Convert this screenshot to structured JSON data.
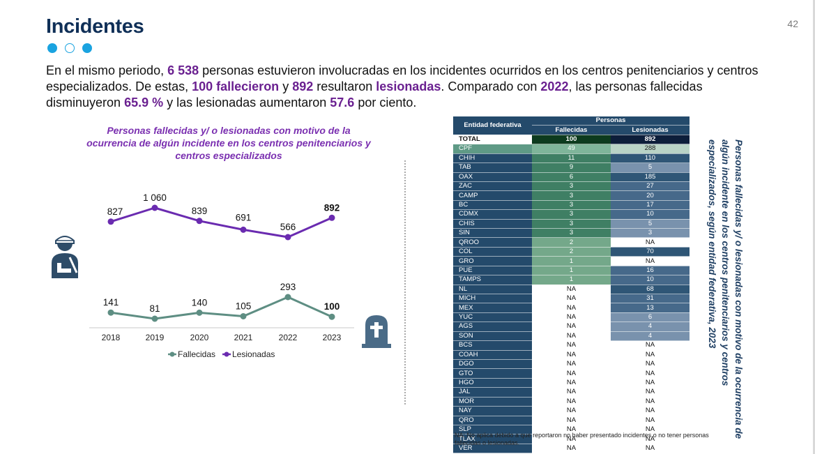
{
  "page": {
    "title": "Incidentes",
    "number": "42"
  },
  "intro": {
    "p1": "En el mismo periodo, ",
    "v_total": "6 538",
    "p2": " personas estuvieron involucradas en los incidentes ocurridos en los centros penitenciarios y centros especializados. De estas, ",
    "v_fallecieron": "100 fallecieron",
    "p3": " y ",
    "v_892": "892",
    "p4": " resultaron ",
    "v_lesionadas": "lesionadas",
    "p5": ". Comparado con ",
    "v_2022": "2022",
    "p6": ", las personas fallecidas disminuyeron ",
    "v_659": "65.9 %",
    "p7": " y las lesionadas aumentaron ",
    "v_576": "57.6",
    "p8": " por ciento."
  },
  "chart_data": {
    "type": "line",
    "title": "Personas fallecidas y/ o lesionadas con motivo de la ocurrencia de algún incidente en los centros penitenciarios y centros especializados",
    "categories": [
      "2018",
      "2019",
      "2020",
      "2021",
      "2022",
      "2023"
    ],
    "series": [
      {
        "name": "Fallecidas",
        "color": "#5e8e83",
        "values": [
          141,
          81,
          140,
          105,
          293,
          100
        ],
        "labels": [
          "141",
          "81",
          "140",
          "105",
          "293",
          "100"
        ]
      },
      {
        "name": "Lesionadas",
        "color": "#6a2bb0",
        "values": [
          827,
          1060,
          839,
          691,
          566,
          892
        ],
        "labels": [
          "827",
          "1 060",
          "839",
          "691",
          "566",
          "892"
        ]
      }
    ],
    "legend": "bottom"
  },
  "table": {
    "header_entity": "Entidad federativa",
    "header_group": "Personas",
    "header_col1": "Fallecidas",
    "header_col2": "Lesionadas",
    "rows": [
      {
        "e": "TOTAL",
        "f": "100",
        "l": "892"
      },
      {
        "e": "CPF",
        "f": "49",
        "l": "288"
      },
      {
        "e": "CHIH",
        "f": "11",
        "l": "110"
      },
      {
        "e": "TAB",
        "f": "9",
        "l": "5"
      },
      {
        "e": "OAX",
        "f": "6",
        "l": "185"
      },
      {
        "e": "ZAC",
        "f": "3",
        "l": "27"
      },
      {
        "e": "CAMP",
        "f": "3",
        "l": "20"
      },
      {
        "e": "BC",
        "f": "3",
        "l": "17"
      },
      {
        "e": "CDMX",
        "f": "3",
        "l": "10"
      },
      {
        "e": "CHIS",
        "f": "3",
        "l": "5"
      },
      {
        "e": "SIN",
        "f": "3",
        "l": "3"
      },
      {
        "e": "QROO",
        "f": "2",
        "l": "NA"
      },
      {
        "e": "COL",
        "f": "2",
        "l": "70"
      },
      {
        "e": "GRO",
        "f": "1",
        "l": "NA"
      },
      {
        "e": "PUE",
        "f": "1",
        "l": "16"
      },
      {
        "e": "TAMPS",
        "f": "1",
        "l": "10"
      },
      {
        "e": "NL",
        "f": "NA",
        "l": "68"
      },
      {
        "e": "MICH",
        "f": "NA",
        "l": "31"
      },
      {
        "e": "MEX",
        "f": "NA",
        "l": "13"
      },
      {
        "e": "YUC",
        "f": "NA",
        "l": "6"
      },
      {
        "e": "AGS",
        "f": "NA",
        "l": "4"
      },
      {
        "e": "SON",
        "f": "NA",
        "l": "4"
      },
      {
        "e": "BCS",
        "f": "NA",
        "l": "NA"
      },
      {
        "e": "COAH",
        "f": "NA",
        "l": "NA"
      },
      {
        "e": "DGO",
        "f": "NA",
        "l": "NA"
      },
      {
        "e": "GTO",
        "f": "NA",
        "l": "NA"
      },
      {
        "e": "HGO",
        "f": "NA",
        "l": "NA"
      },
      {
        "e": "JAL",
        "f": "NA",
        "l": "NA"
      },
      {
        "e": "MOR",
        "f": "NA",
        "l": "NA"
      },
      {
        "e": "NAY",
        "f": "NA",
        "l": "NA"
      },
      {
        "e": "QRO",
        "f": "NA",
        "l": "NA"
      },
      {
        "e": "SLP",
        "f": "NA",
        "l": "NA"
      },
      {
        "e": "TLAX",
        "f": "NA",
        "l": "NA"
      },
      {
        "e": "VER",
        "f": "NA",
        "l": "NA"
      }
    ],
    "note": "NA: No aplica debido a que reportaron no haber presentado incidentes o no tener personas fallecidas o lesionadas.",
    "side_title": "Personas fallecidas y/ o lesionadas con motivo de la ocurrencia de algún incidente en los centros penitenciarios y centros especializados, según entidad federativa, 2023"
  },
  "colors": {
    "title": "#0f2f57",
    "accent": "#6a2090",
    "header": "#244a6b",
    "fallecidas_fill": "#4f8a73",
    "lesionadas_fill": "#3d6484",
    "total_fallecidas": "#0d3b1e",
    "total_lesionadas": "#0d1e3a"
  },
  "icons": {
    "injured": "injured-person-icon",
    "grave": "tombstone-icon"
  }
}
